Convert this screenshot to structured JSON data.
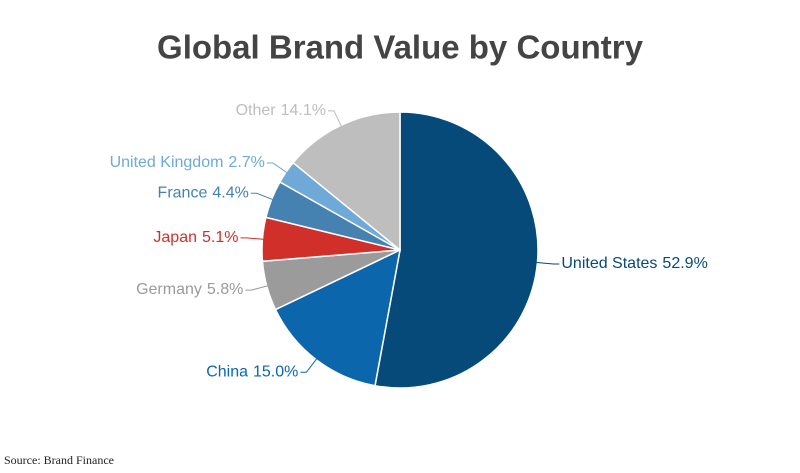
{
  "chart_data": {
    "type": "pie",
    "title": "Global Brand Value by Country",
    "source": "Source: Brand Finance",
    "categories": [
      "United States",
      "China",
      "Germany",
      "Japan",
      "France",
      "United Kingdom",
      "Other"
    ],
    "values": [
      52.9,
      15.0,
      5.8,
      5.1,
      4.4,
      2.7,
      14.1
    ],
    "value_labels": [
      "52.9%",
      "15.0%",
      "5.8%",
      "5.1%",
      "4.4%",
      "2.7%",
      "14.1%"
    ],
    "colors": [
      "#064a7a",
      "#0b66ac",
      "#9b9b9b",
      "#d1302a",
      "#4682b1",
      "#6fa9d8",
      "#bebebe"
    ]
  }
}
